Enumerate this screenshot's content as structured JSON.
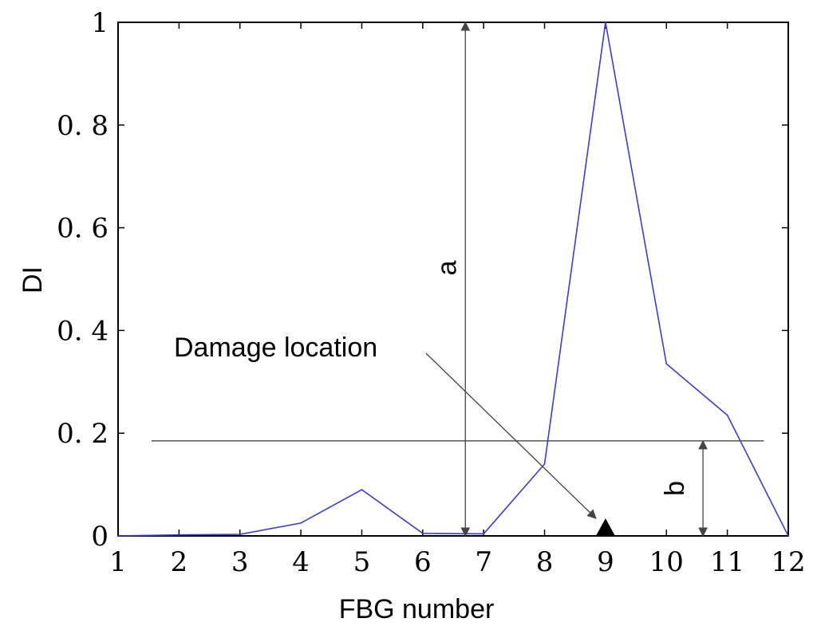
{
  "chart_data": {
    "type": "line",
    "title": "",
    "xlabel": "FBG number",
    "ylabel": "DI",
    "xlim": [
      1,
      12
    ],
    "ylim": [
      0,
      1
    ],
    "x_ticks": [
      "1",
      "2",
      "3",
      "4",
      "5",
      "6",
      "7",
      "8",
      "9",
      "10",
      "11",
      "12"
    ],
    "y_ticks": [
      "0",
      "0. 2",
      "0. 4",
      "0. 6",
      "0. 8",
      "1"
    ],
    "grid": false,
    "series": [
      {
        "color": "#3a3ae0",
        "x": [
          1,
          2,
          3,
          4,
          5,
          6,
          7,
          8,
          9,
          10,
          11,
          12
        ],
        "y": [
          0.0,
          0.002,
          0.003,
          0.025,
          0.09,
          0.005,
          0.004,
          0.14,
          1.0,
          0.335,
          0.235,
          0.0
        ]
      }
    ],
    "threshold": {
      "y": 0.185,
      "x_from": 1.55,
      "x_to": 11.6
    },
    "annotations": {
      "a": {
        "label": "a",
        "x": 6.7,
        "y_from": 0,
        "y_to": 1
      },
      "b": {
        "label": "b",
        "x": 10.6,
        "y_from": 0,
        "y_to": 0.185
      },
      "damage": {
        "label": "Damage location",
        "marker_x": 9,
        "marker_y": 0
      }
    }
  }
}
